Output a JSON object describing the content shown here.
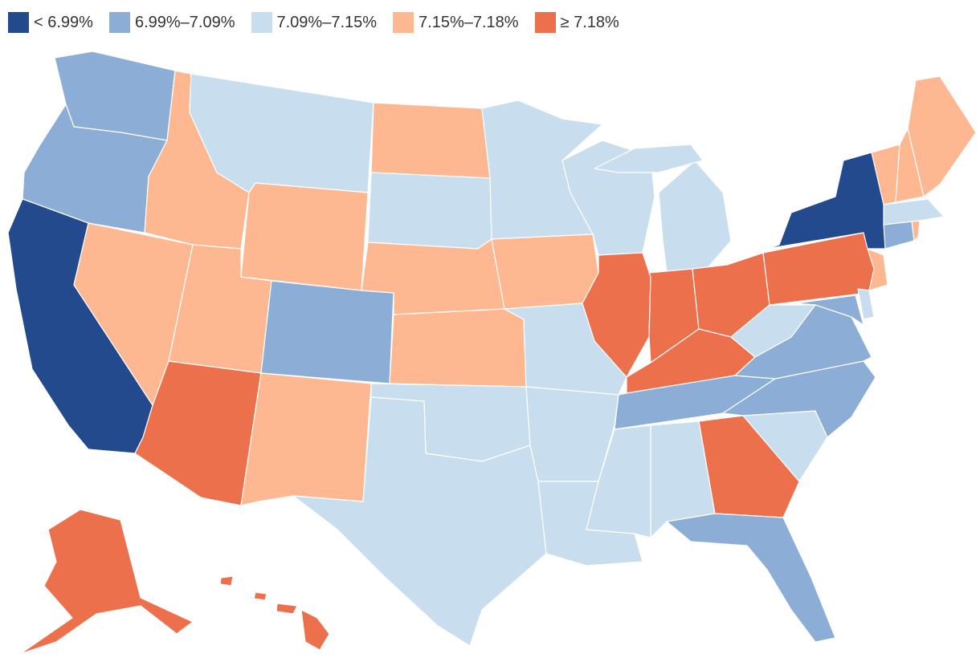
{
  "legend": {
    "items": [
      {
        "label": "< 6.99%",
        "color": "#234a8c"
      },
      {
        "label": "6.99%–7.09%",
        "color": "#8caed6"
      },
      {
        "label": "7.09%–7.15%",
        "color": "#c8deee"
      },
      {
        "label": "7.15%–7.18%",
        "color": "#fdb891"
      },
      {
        "label": "≥ 7.18%",
        "color": "#ec704c"
      }
    ]
  },
  "states": {
    "WA": 1,
    "OR": 1,
    "CA": 0,
    "NV": 3,
    "ID": 3,
    "MT": 2,
    "WY": 3,
    "UT": 3,
    "AZ": 4,
    "CO": 1,
    "NM": 3,
    "ND": 3,
    "SD": 2,
    "NE": 3,
    "KS": 3,
    "OK": 2,
    "TX": 2,
    "MN": 2,
    "IA": 3,
    "MO": 2,
    "AR": 2,
    "LA": 2,
    "WI": 2,
    "IL": 4,
    "MI": 2,
    "IN": 4,
    "OH": 4,
    "KY": 4,
    "TN": 1,
    "MS": 2,
    "AL": 2,
    "GA": 4,
    "FL": 1,
    "SC": 2,
    "NC": 1,
    "VA": 1,
    "WV": 2,
    "MD": 1,
    "DE": 2,
    "PA": 4,
    "NJ": 3,
    "NY": 0,
    "CT": 1,
    "RI": 3,
    "MA": 2,
    "VT": 3,
    "NH": 3,
    "ME": 3,
    "AK": 4,
    "HI": 4
  }
}
